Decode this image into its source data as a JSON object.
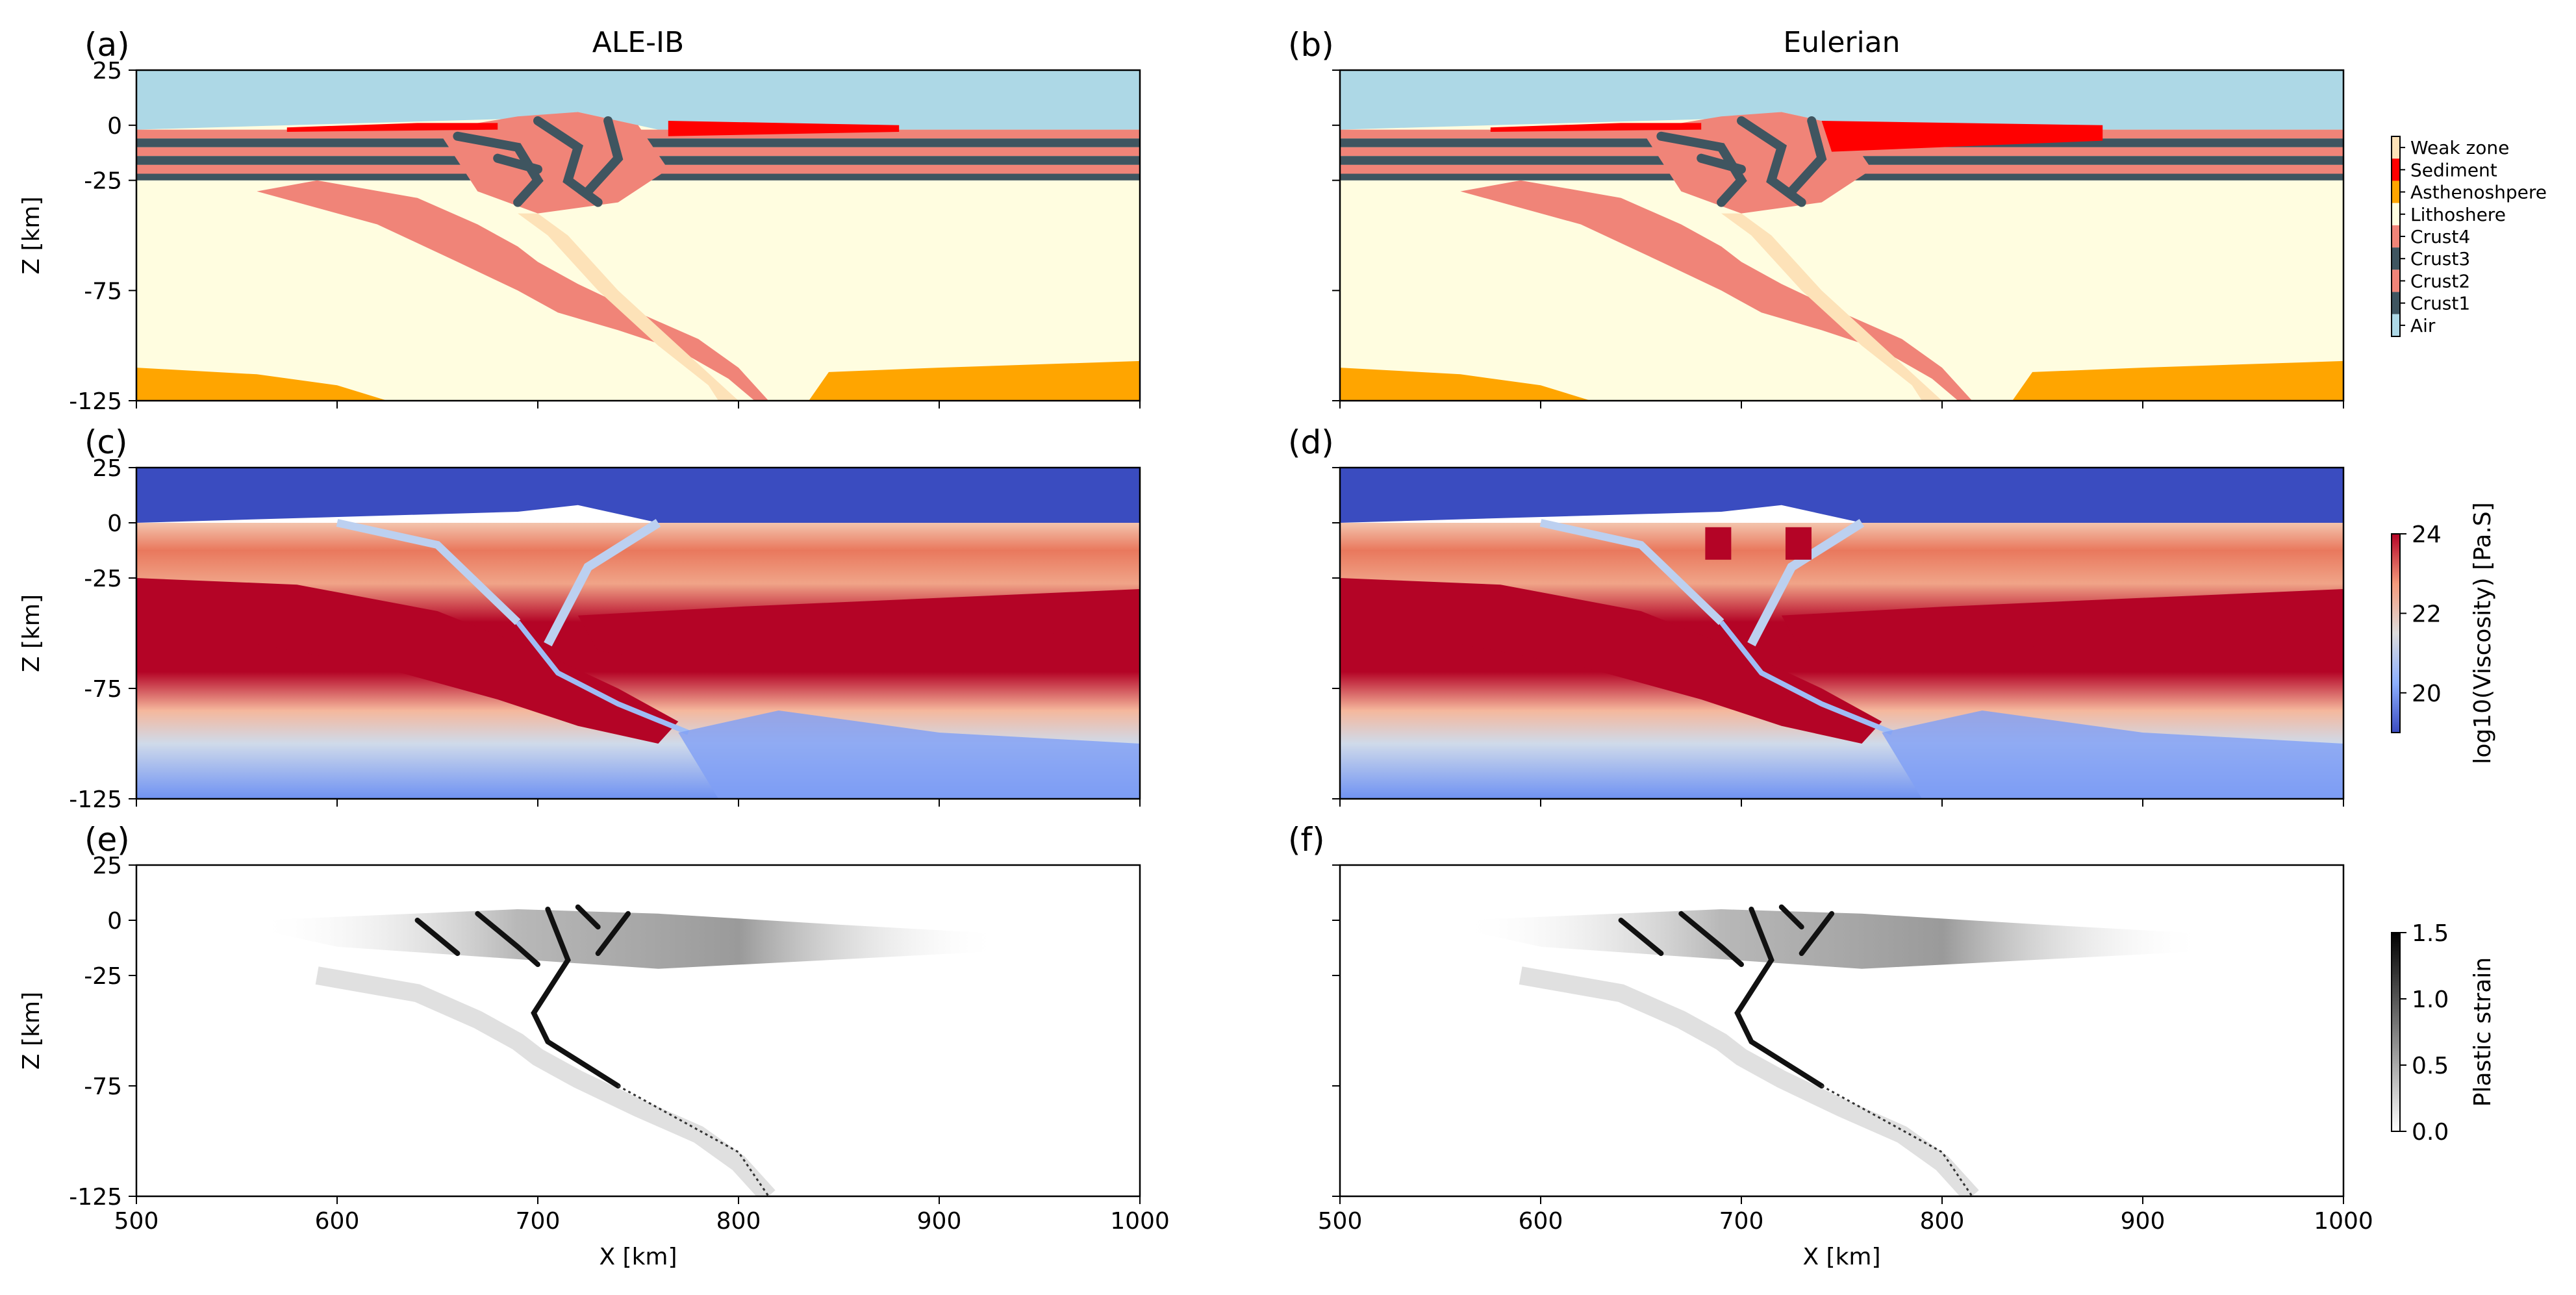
{
  "colors": {
    "air": "#add8e6",
    "crust1": "#3f5560",
    "crust2": "#f08478",
    "crust3": "#3f5560",
    "crust4": "#f08478",
    "lithosphere": "#fffde0",
    "asthenosphere": "#ffa500",
    "sediment": "#ff0000",
    "weak_zone": "#fde2b8",
    "viscosity_low": "#3a4cc0",
    "viscosity_high": "#b40426"
  },
  "chart_data": [
    {
      "type": "heatmap",
      "panel_label": "(a)",
      "title": "ALE-IB",
      "xlabel": "",
      "ylabel": "Z [km]",
      "xlim": [
        500,
        1000
      ],
      "ylim": [
        -125,
        25
      ],
      "xticks": [
        500,
        600,
        700,
        800,
        900,
        1000
      ],
      "yticks": [
        25,
        0,
        -25,
        -75,
        -125
      ],
      "field": "material",
      "series": [
        {
          "name": "Air",
          "values": [
            [
              500,
              25
            ],
            [
              1000,
              -2
            ]
          ]
        },
        {
          "name": "Crust1",
          "values": [
            [
              500,
              -22
            ],
            [
              1000,
              -18
            ]
          ]
        },
        {
          "name": "Crust2",
          "values": [
            [
              500,
              -16
            ],
            [
              1000,
              -12
            ]
          ]
        },
        {
          "name": "Crust3",
          "values": [
            [
              500,
              -10
            ],
            [
              1000,
              -6
            ]
          ]
        },
        {
          "name": "Crust4",
          "values": [
            [
              500,
              -4
            ],
            [
              1000,
              -2
            ]
          ]
        },
        {
          "name": "Sediment",
          "values": [
            [
              570,
              -2
            ],
            [
              640,
              0
            ],
            [
              760,
              -2
            ],
            [
              880,
              0
            ]
          ]
        },
        {
          "name": "Lithoshere",
          "values": [
            [
              500,
              -25
            ],
            [
              1000,
              -125
            ]
          ]
        },
        {
          "name": "Asthenoshpere",
          "values": [
            [
              500,
              -110
            ],
            [
              625,
              -125
            ],
            [
              835,
              -125
            ],
            [
              1000,
              -108
            ]
          ]
        },
        {
          "name": "Weak zone",
          "values": [
            [
              700,
              -40
            ],
            [
              800,
              -125
            ]
          ]
        }
      ]
    },
    {
      "type": "heatmap",
      "panel_label": "(b)",
      "title": "Eulerian",
      "xlabel": "",
      "ylabel": "",
      "xlim": [
        500,
        1000
      ],
      "ylim": [
        -125,
        25
      ],
      "xticks": [
        500,
        600,
        700,
        800,
        900,
        1000
      ],
      "field": "material",
      "legend": {
        "position": "right",
        "entries": [
          "Weak zone",
          "Sediment",
          "Asthenoshpere",
          "Lithoshere",
          "Crust4",
          "Crust3",
          "Crust2",
          "Crust1",
          "Air"
        ]
      }
    },
    {
      "type": "heatmap",
      "panel_label": "(c)",
      "title": "",
      "xlabel": "",
      "ylabel": "Z [km]",
      "xlim": [
        500,
        1000
      ],
      "ylim": [
        -125,
        25
      ],
      "yticks": [
        25,
        0,
        -25,
        -75,
        -125
      ],
      "field": "log10(Viscosity) [Pa.S]"
    },
    {
      "type": "heatmap",
      "panel_label": "(d)",
      "title": "",
      "xlabel": "",
      "ylabel": "",
      "xlim": [
        500,
        1000
      ],
      "ylim": [
        -125,
        25
      ],
      "field": "log10(Viscosity) [Pa.S]",
      "colorbar": {
        "label": "log10(Viscosity) [Pa.S]",
        "range": [
          19,
          24
        ],
        "ticks": [
          20,
          22,
          24
        ]
      }
    },
    {
      "type": "heatmap",
      "panel_label": "(e)",
      "title": "",
      "xlabel": "X [km]",
      "ylabel": "Z [km]",
      "xlim": [
        500,
        1000
      ],
      "ylim": [
        -125,
        25
      ],
      "xticks": [
        500,
        600,
        700,
        800,
        900,
        1000
      ],
      "yticks": [
        25,
        0,
        -25,
        -75,
        -125
      ],
      "field": "Plastic strain"
    },
    {
      "type": "heatmap",
      "panel_label": "(f)",
      "title": "",
      "xlabel": "X [km]",
      "ylabel": "",
      "xlim": [
        500,
        1000
      ],
      "ylim": [
        -125,
        25
      ],
      "xticks": [
        500,
        600,
        700,
        800,
        900,
        1000
      ],
      "field": "Plastic strain",
      "colorbar": {
        "label": "Plastic strain",
        "range": [
          0,
          1.5
        ],
        "ticks": [
          0.0,
          0.5,
          1.0,
          1.5
        ]
      }
    }
  ],
  "ui": {
    "tick_labels_x": [
      "500",
      "600",
      "700",
      "800",
      "900",
      "1000"
    ],
    "tick_labels_y": [
      "25",
      "0",
      "-25",
      "-75",
      "-125"
    ],
    "viscosity_ticks": [
      "20",
      "22",
      "24"
    ],
    "strain_ticks": [
      "0.0",
      "0.5",
      "1.0",
      "1.5"
    ]
  }
}
